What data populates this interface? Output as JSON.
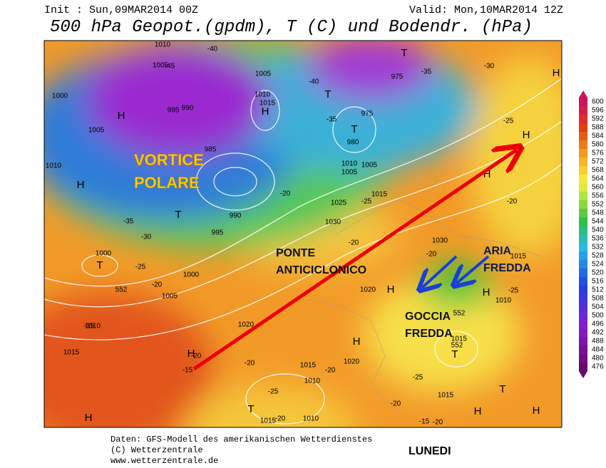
{
  "header": {
    "init": "Init : Sun,09MAR2014 00Z",
    "valid": "Valid: Mon,10MAR2014 12Z",
    "title": "500 hPa Geopot.(gpdm), T (C) und Bodendr. (hPa)"
  },
  "annotations": {
    "vortice": "VORTICE",
    "polare": "POLARE",
    "ponte": "PONTE",
    "anticiclonico": "ANTICICLONICO",
    "aria": "ARIA",
    "fredda_1": "FREDDA",
    "goccia": "GOCCIA",
    "fredda_2": "FREDDA",
    "day": "LUNEDI"
  },
  "footer": {
    "source": "Daten: GFS-Modell des amerikanischen Wetterdienstes",
    "copyright": "(C) Wetterzentrale",
    "url": "www.wetterzentrale.de"
  },
  "colorbar": [
    600,
    596,
    592,
    588,
    584,
    580,
    576,
    572,
    568,
    564,
    560,
    556,
    552,
    548,
    544,
    540,
    536,
    532,
    528,
    524,
    520,
    516,
    512,
    508,
    504,
    500,
    496,
    492,
    488,
    484,
    480,
    476
  ],
  "map_labels": [
    "1010",
    "1005",
    "1000",
    "1005",
    "1010",
    "H",
    "H",
    "995",
    "990",
    "985",
    "990",
    "995",
    "T",
    "1000",
    "T",
    "1000",
    "1005",
    "-35",
    "-30",
    "-25",
    "-20",
    "552",
    "1010",
    "1015",
    "-15",
    "H",
    "-15",
    "T",
    "-25",
    "-20",
    "1010",
    "1015",
    "-20",
    "1020",
    "1025",
    "1030",
    "-20",
    "1020",
    "H",
    "1015",
    "-25",
    "1010",
    "1005",
    "975",
    "T",
    "980",
    "1010",
    "1015",
    "H",
    "1005",
    "-40",
    "-45",
    "-40",
    "-35",
    "T",
    "975",
    "T",
    "-35",
    "-30",
    "H",
    "-25",
    "H",
    "H",
    "-20",
    "1030",
    "-20",
    "1015",
    "1010",
    "-25",
    "H",
    "552",
    "1015",
    "552",
    "T",
    "1015",
    "-25",
    "-20",
    "H",
    "H",
    "T",
    "-20",
    "-15",
    "1020",
    "H",
    "-20",
    "1010",
    "1015",
    "-20",
    "-20",
    "1005",
    "H"
  ]
}
